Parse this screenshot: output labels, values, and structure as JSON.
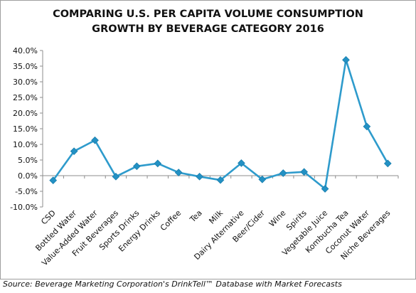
{
  "chart_data": {
    "type": "line",
    "title_lines": [
      "COMPARING U.S. PER CAPITA VOLUME CONSUMPTION",
      "GROWTH BY BEVERAGE CATEGORY  2016"
    ],
    "xlabel": "",
    "ylabel": "",
    "categories": [
      "CSD",
      "Bottled Water",
      "Value-Added Water",
      "Fruit Beverages",
      "Sports Drinks",
      "Energy Drinks",
      "Coffee",
      "Tea",
      "Milk",
      "Dairy Alternative",
      "Beer/Cider",
      "Wine",
      "Spirits",
      "Vegetable Juice",
      "Kombucha Tea",
      "Coconut Water",
      "Niche Beverages"
    ],
    "values": [
      -1.5,
      7.8,
      11.3,
      -0.3,
      3.0,
      3.9,
      1.0,
      -0.3,
      -1.4,
      4.0,
      -1.2,
      0.8,
      1.2,
      -4.2,
      37.0,
      15.7,
      3.9
    ],
    "ylim": [
      -10,
      40
    ],
    "yticks": [
      "-10.0%",
      "-5.0%",
      "0.0%",
      "5.0%",
      "10.0%",
      "15.0%",
      "20.0%",
      "25.0%",
      "30.0%",
      "35.0%",
      "40.0%"
    ],
    "ytick_values": [
      -10,
      -5,
      0,
      5,
      10,
      15,
      20,
      25,
      30,
      35,
      40
    ],
    "grid": false,
    "legend": "none",
    "line_color": "#2e9bcc",
    "marker_color": "#2391c4",
    "marker": "diamond"
  },
  "source": "Source: Beverage Marketing Corporation's DrinkTell™ Database with Market Forecasts"
}
